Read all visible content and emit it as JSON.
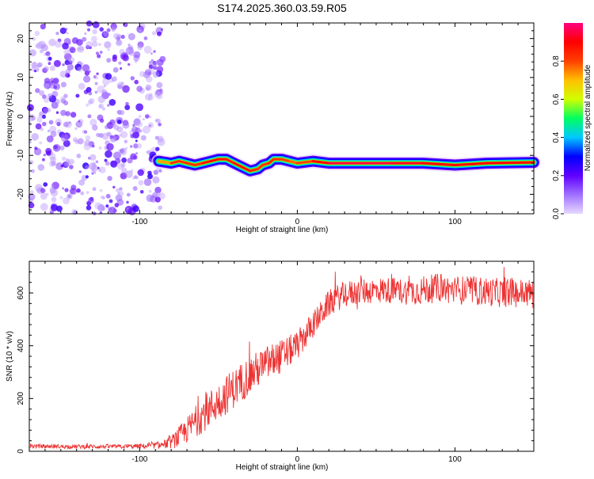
{
  "title": "S174.2025.360.03.59.R05",
  "chart_data": [
    {
      "type": "heatmap",
      "title": "S174.2025.360.03.59.R05",
      "xlabel": "Height of straight line (km)",
      "ylabel": "Frequency (Hz)",
      "xlim": [
        -170,
        150
      ],
      "ylim": [
        -25,
        24
      ],
      "x_ticks": [
        -100,
        0,
        100
      ],
      "x_tick_labels": [
        "-100",
        "0",
        "100"
      ],
      "y_ticks": [
        -20,
        -10,
        0,
        10,
        20
      ],
      "y_tick_labels": [
        "-20",
        "-10",
        "0",
        "10",
        "20"
      ],
      "colorbar": {
        "label": "Normalized spectral amplitude",
        "range": [
          0.0,
          1.0
        ],
        "ticks": [
          0.0,
          0.2,
          0.4,
          0.6,
          0.8
        ],
        "tick_labels": [
          "0.0",
          "0.2",
          "0.4",
          "0.6",
          "0.8"
        ],
        "colors": [
          "#e8d8ff",
          "#a070ff",
          "#6000ff",
          "#0000ff",
          "#00c8ff",
          "#00ff60",
          "#d0ff00",
          "#ffc000",
          "#ff4000",
          "#ff0000",
          "#ff0080"
        ]
      },
      "noise_region": {
        "x_range": [
          -170,
          -85
        ],
        "y_range": [
          -25,
          24
        ],
        "amplitude": [
          0.05,
          0.25
        ]
      },
      "ridge": {
        "x": [
          -88,
          -80,
          -75,
          -70,
          -65,
          -60,
          -55,
          -50,
          -45,
          -40,
          -35,
          -30,
          -25,
          -22,
          -18,
          -15,
          -10,
          -5,
          0,
          10,
          20,
          40,
          60,
          80,
          100,
          120,
          150
        ],
        "y": [
          -11.5,
          -12,
          -11.5,
          -12,
          -12.5,
          -12,
          -11.5,
          -11,
          -11,
          -12,
          -13,
          -14,
          -13.5,
          -12.5,
          -12,
          -11,
          -11,
          -11.5,
          -12,
          -11.5,
          -12,
          -12,
          -12,
          -12,
          -12.5,
          -12,
          -11.8
        ],
        "amplitude": [
          0.6,
          0.85,
          0.8,
          0.85,
          0.8,
          0.85,
          0.9,
          0.9,
          0.85,
          0.85,
          0.9,
          0.85,
          0.85,
          0.8,
          0.85,
          0.85,
          0.8,
          0.8,
          0.75,
          0.85,
          0.95,
          0.95,
          0.95,
          0.9,
          0.9,
          0.9,
          0.9
        ]
      }
    },
    {
      "type": "line",
      "title": "",
      "xlabel": "Height of straight line (km)",
      "ylabel": "SNR (10 * v/v)",
      "xlim": [
        -170,
        150
      ],
      "ylim": [
        0,
        720
      ],
      "x_ticks": [
        -100,
        0,
        100
      ],
      "x_tick_labels": [
        "-100",
        "0",
        "100"
      ],
      "y_ticks": [
        0,
        200,
        400,
        600
      ],
      "y_tick_labels": [
        "0",
        "200",
        "400",
        "600"
      ],
      "color": "#ee3333",
      "series": [
        {
          "name": "SNR",
          "x": [
            -170,
            -150,
            -130,
            -110,
            -95,
            -90,
            -85,
            -80,
            -75,
            -70,
            -65,
            -60,
            -55,
            -50,
            -45,
            -40,
            -35,
            -30,
            -25,
            -20,
            -15,
            -10,
            -5,
            0,
            5,
            10,
            15,
            20,
            25,
            30,
            40,
            50,
            60,
            70,
            80,
            90,
            100,
            110,
            120,
            130,
            140,
            150
          ],
          "values": [
            20,
            18,
            18,
            18,
            20,
            22,
            25,
            35,
            55,
            80,
            110,
            140,
            165,
            190,
            215,
            240,
            265,
            290,
            310,
            330,
            345,
            360,
            380,
            400,
            440,
            480,
            520,
            560,
            580,
            595,
            605,
            610,
            610,
            605,
            610,
            620,
            610,
            610,
            605,
            600,
            600,
            600
          ],
          "noise": [
            8,
            8,
            8,
            8,
            10,
            12,
            15,
            25,
            40,
            50,
            60,
            70,
            70,
            75,
            75,
            75,
            75,
            75,
            70,
            70,
            70,
            65,
            60,
            55,
            55,
            50,
            50,
            50,
            50,
            50,
            50,
            50,
            50,
            50,
            55,
            55,
            55,
            55,
            55,
            55,
            55,
            55
          ]
        }
      ]
    }
  ]
}
